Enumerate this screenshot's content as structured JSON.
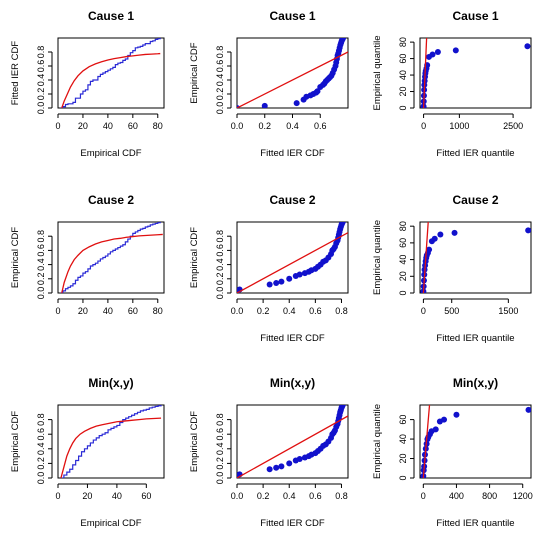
{
  "chart_data": [
    {
      "type": "line",
      "title": "Cause 1",
      "xlabel": "Empirical CDF",
      "ylabel": "Fitted IER CDF",
      "xlim": [
        0,
        85
      ],
      "ylim": [
        0,
        1
      ],
      "xticks": [
        "0",
        "20",
        "40",
        "60",
        "80"
      ],
      "yticks": [
        "0.0",
        "0.2",
        "0.4",
        "0.6",
        "0.8"
      ],
      "series": [
        {
          "color": "#2b2bd6",
          "style": "step",
          "x": [
            2,
            4,
            6,
            8,
            10,
            12,
            14,
            16,
            18,
            20,
            22,
            24,
            26,
            28,
            30,
            32,
            34,
            36,
            38,
            40,
            42,
            44,
            46,
            48,
            50,
            52,
            54,
            56,
            58,
            60,
            62,
            64,
            66,
            68,
            70,
            72,
            74,
            76,
            78,
            80,
            82
          ],
          "y": [
            0.0,
            0.02,
            0.05,
            0.06,
            0.06,
            0.08,
            0.14,
            0.14,
            0.2,
            0.24,
            0.26,
            0.33,
            0.38,
            0.4,
            0.4,
            0.45,
            0.48,
            0.5,
            0.52,
            0.54,
            0.56,
            0.58,
            0.62,
            0.64,
            0.65,
            0.68,
            0.7,
            0.75,
            0.79,
            0.82,
            0.86,
            0.87,
            0.88,
            0.9,
            0.92,
            0.92,
            0.95,
            0.96,
            0.98,
            0.99,
            1.0
          ]
        },
        {
          "color": "#e01010",
          "style": "line",
          "x": [
            3,
            5,
            8,
            10,
            13,
            16,
            20,
            25,
            30,
            35,
            40,
            45,
            50,
            55,
            60,
            65,
            70,
            75,
            80,
            82
          ],
          "y": [
            0.0,
            0.1,
            0.22,
            0.3,
            0.39,
            0.46,
            0.53,
            0.59,
            0.63,
            0.66,
            0.685,
            0.705,
            0.72,
            0.735,
            0.745,
            0.755,
            0.765,
            0.77,
            0.775,
            0.778
          ]
        }
      ]
    },
    {
      "type": "scatter",
      "title": "Cause 1",
      "xlabel": "Fitted IER CDF",
      "ylabel": "Empirical CDF",
      "xlim": [
        0,
        0.8
      ],
      "ylim": [
        0,
        1
      ],
      "xticks": [
        "0.0",
        "0.2",
        "0.4",
        "0.6"
      ],
      "yticks": [
        "0.0",
        "0.2",
        "0.4",
        "0.6",
        "0.8"
      ],
      "series": [
        {
          "color": "#1111cc",
          "style": "points",
          "x": [
            0.0,
            0.2,
            0.43,
            0.48,
            0.5,
            0.53,
            0.55,
            0.57,
            0.58,
            0.6,
            0.62,
            0.63,
            0.64,
            0.65,
            0.66,
            0.67,
            0.68,
            0.69,
            0.7,
            0.71,
            0.715,
            0.72,
            0.725,
            0.73,
            0.735,
            0.74,
            0.745,
            0.75,
            0.755,
            0.76,
            0.765
          ],
          "y": [
            0.0,
            0.03,
            0.07,
            0.12,
            0.16,
            0.18,
            0.2,
            0.22,
            0.24,
            0.3,
            0.33,
            0.35,
            0.38,
            0.4,
            0.42,
            0.44,
            0.46,
            0.5,
            0.55,
            0.6,
            0.65,
            0.7,
            0.75,
            0.78,
            0.82,
            0.86,
            0.9,
            0.93,
            0.96,
            0.98,
            1.0
          ]
        },
        {
          "color": "#e01010",
          "style": "line",
          "x": [
            0,
            0.8
          ],
          "y": [
            0,
            0.8
          ]
        }
      ]
    },
    {
      "type": "scatter",
      "title": "Cause 1",
      "xlabel": "Fitted IER quantile",
      "ylabel": "Empirical quantile",
      "xlim": [
        -100,
        3000
      ],
      "ylim": [
        0,
        85
      ],
      "xticks": [
        "0",
        "1000",
        "2500"
      ],
      "xtickvals": [
        0,
        1000,
        2500
      ],
      "yticks": [
        "0",
        "20",
        "40",
        "60",
        "80"
      ],
      "series": [
        {
          "color": "#1111cc",
          "style": "points",
          "x": [
            0,
            5,
            10,
            15,
            20,
            30,
            40,
            50,
            60,
            80,
            100,
            150,
            250,
            400,
            900,
            2900
          ],
          "y": [
            2,
            8,
            15,
            22,
            28,
            33,
            38,
            42,
            45,
            48,
            52,
            62,
            65,
            68,
            70,
            75
          ]
        },
        {
          "color": "#e01010",
          "style": "line",
          "x": [
            0,
            90
          ],
          "y": [
            0,
            90
          ]
        }
      ]
    },
    {
      "type": "line",
      "title": "Cause 2",
      "xlabel": "",
      "ylabel": "Empirical CDF",
      "xlim": [
        0,
        85
      ],
      "ylim": [
        0,
        1
      ],
      "xticks": [
        "0",
        "20",
        "40",
        "60",
        "80"
      ],
      "yticks": [
        "0.0",
        "0.2",
        "0.4",
        "0.6",
        "0.8"
      ],
      "series": [
        {
          "color": "#2b2bd6",
          "style": "step",
          "x": [
            2,
            4,
            6,
            8,
            10,
            12,
            14,
            16,
            18,
            20,
            22,
            24,
            26,
            28,
            30,
            32,
            34,
            36,
            38,
            40,
            42,
            44,
            46,
            48,
            50,
            52,
            54,
            56,
            58,
            60,
            62,
            64,
            66,
            68,
            70,
            72,
            74,
            76,
            78,
            80,
            82
          ],
          "y": [
            0.0,
            0.03,
            0.06,
            0.08,
            0.1,
            0.13,
            0.18,
            0.22,
            0.24,
            0.28,
            0.3,
            0.34,
            0.38,
            0.4,
            0.42,
            0.45,
            0.48,
            0.5,
            0.52,
            0.55,
            0.58,
            0.6,
            0.62,
            0.64,
            0.66,
            0.68,
            0.72,
            0.76,
            0.8,
            0.84,
            0.86,
            0.88,
            0.9,
            0.91,
            0.93,
            0.94,
            0.96,
            0.97,
            0.98,
            0.99,
            1.0
          ]
        },
        {
          "color": "#e01010",
          "style": "line",
          "x": [
            3,
            5,
            8,
            10,
            13,
            16,
            20,
            25,
            30,
            35,
            40,
            45,
            50,
            55,
            60,
            65,
            70,
            75,
            80,
            84
          ],
          "y": [
            0.0,
            0.15,
            0.3,
            0.38,
            0.47,
            0.53,
            0.6,
            0.65,
            0.69,
            0.72,
            0.74,
            0.76,
            0.77,
            0.785,
            0.795,
            0.805,
            0.81,
            0.815,
            0.82,
            0.825
          ]
        }
      ]
    },
    {
      "type": "scatter",
      "title": "Cause 2",
      "xlabel": "Fitted IER CDF",
      "ylabel": "Empirical CDF",
      "xlim": [
        0,
        0.85
      ],
      "ylim": [
        0,
        1
      ],
      "xticks": [
        "0.0",
        "0.2",
        "0.4",
        "0.6",
        "0.8"
      ],
      "yticks": [
        "0.0",
        "0.2",
        "0.4",
        "0.6",
        "0.8"
      ],
      "series": [
        {
          "color": "#1111cc",
          "style": "points",
          "x": [
            0.0,
            0.02,
            0.25,
            0.3,
            0.34,
            0.4,
            0.45,
            0.48,
            0.52,
            0.55,
            0.57,
            0.6,
            0.62,
            0.64,
            0.66,
            0.68,
            0.7,
            0.72,
            0.73,
            0.74,
            0.75,
            0.76,
            0.77,
            0.775,
            0.78,
            0.785,
            0.79,
            0.795,
            0.8,
            0.805,
            0.81
          ],
          "y": [
            0.0,
            0.05,
            0.12,
            0.14,
            0.16,
            0.2,
            0.24,
            0.26,
            0.28,
            0.3,
            0.32,
            0.34,
            0.37,
            0.4,
            0.44,
            0.46,
            0.5,
            0.55,
            0.6,
            0.62,
            0.65,
            0.7,
            0.74,
            0.78,
            0.82,
            0.86,
            0.9,
            0.93,
            0.96,
            0.98,
            1.0
          ]
        },
        {
          "color": "#e01010",
          "style": "line",
          "x": [
            0,
            0.85
          ],
          "y": [
            0,
            0.85
          ]
        }
      ]
    },
    {
      "type": "scatter",
      "title": "Cause 2",
      "xlabel": "Fitted IER quantile",
      "ylabel": "Empirical quantile",
      "xlim": [
        -60,
        1900
      ],
      "ylim": [
        0,
        85
      ],
      "xticks": [
        "0",
        "500",
        "1500"
      ],
      "xtickvals": [
        0,
        500,
        1500
      ],
      "yticks": [
        "0",
        "20",
        "40",
        "60",
        "80"
      ],
      "series": [
        {
          "color": "#1111cc",
          "style": "points",
          "x": [
            0,
            5,
            10,
            15,
            20,
            30,
            40,
            50,
            60,
            80,
            100,
            150,
            200,
            300,
            550,
            1850
          ],
          "y": [
            2,
            8,
            15,
            22,
            28,
            33,
            38,
            42,
            45,
            48,
            52,
            62,
            65,
            70,
            72,
            75
          ]
        },
        {
          "color": "#e01010",
          "style": "line",
          "x": [
            0,
            90
          ],
          "y": [
            0,
            90
          ]
        }
      ]
    },
    {
      "type": "line",
      "title": "Min(x,y)",
      "xlabel": "Empirical CDF",
      "ylabel": "Empirical CDF",
      "xlim": [
        0,
        72
      ],
      "ylim": [
        0,
        1
      ],
      "xticks": [
        "0",
        "20",
        "40",
        "60"
      ],
      "yticks": [
        "0.0",
        "0.2",
        "0.4",
        "0.6",
        "0.8"
      ],
      "series": [
        {
          "color": "#2b2bd6",
          "style": "step",
          "x": [
            2,
            4,
            6,
            8,
            10,
            12,
            14,
            16,
            18,
            20,
            22,
            24,
            26,
            28,
            30,
            32,
            34,
            36,
            38,
            40,
            42,
            44,
            46,
            48,
            50,
            52,
            54,
            56,
            58,
            60,
            62,
            64,
            66,
            68,
            70
          ],
          "y": [
            0.0,
            0.04,
            0.08,
            0.12,
            0.18,
            0.24,
            0.3,
            0.36,
            0.4,
            0.44,
            0.48,
            0.52,
            0.55,
            0.58,
            0.6,
            0.62,
            0.66,
            0.68,
            0.7,
            0.72,
            0.76,
            0.8,
            0.82,
            0.84,
            0.86,
            0.88,
            0.9,
            0.92,
            0.93,
            0.94,
            0.96,
            0.97,
            0.98,
            0.99,
            1.0
          ]
        },
        {
          "color": "#e01010",
          "style": "line",
          "x": [
            2,
            4,
            6,
            8,
            10,
            12,
            15,
            18,
            22,
            26,
            30,
            35,
            40,
            45,
            50,
            55,
            60,
            65,
            70
          ],
          "y": [
            0.0,
            0.15,
            0.3,
            0.4,
            0.48,
            0.54,
            0.6,
            0.64,
            0.68,
            0.71,
            0.73,
            0.75,
            0.77,
            0.78,
            0.79,
            0.8,
            0.81,
            0.815,
            0.82
          ]
        }
      ]
    },
    {
      "type": "scatter",
      "title": "Min(x,y)",
      "xlabel": "Fitted IER CDF",
      "ylabel": "Empirical CDF",
      "xlim": [
        0,
        0.85
      ],
      "ylim": [
        0,
        1
      ],
      "xticks": [
        "0.0",
        "0.2",
        "0.4",
        "0.6",
        "0.8"
      ],
      "yticks": [
        "0.0",
        "0.2",
        "0.4",
        "0.6",
        "0.8"
      ],
      "series": [
        {
          "color": "#1111cc",
          "style": "points",
          "x": [
            0.0,
            0.02,
            0.25,
            0.3,
            0.34,
            0.4,
            0.45,
            0.48,
            0.52,
            0.55,
            0.57,
            0.6,
            0.62,
            0.64,
            0.66,
            0.68,
            0.7,
            0.72,
            0.73,
            0.74,
            0.75,
            0.76,
            0.77,
            0.775,
            0.78,
            0.785,
            0.79,
            0.795,
            0.8,
            0.805,
            0.81
          ],
          "y": [
            0.0,
            0.05,
            0.12,
            0.14,
            0.16,
            0.2,
            0.24,
            0.26,
            0.28,
            0.3,
            0.32,
            0.34,
            0.37,
            0.4,
            0.44,
            0.46,
            0.5,
            0.55,
            0.6,
            0.62,
            0.65,
            0.7,
            0.74,
            0.78,
            0.82,
            0.86,
            0.9,
            0.93,
            0.96,
            0.98,
            1.0
          ]
        },
        {
          "color": "#e01010",
          "style": "line",
          "x": [
            0,
            0.85
          ],
          "y": [
            0,
            0.85
          ]
        }
      ]
    },
    {
      "type": "scatter",
      "title": "Min(x,y)",
      "xlabel": "Fitted IER quantile",
      "ylabel": "Empirical quantile",
      "xlim": [
        -40,
        1300
      ],
      "ylim": [
        0,
        75
      ],
      "xticks": [
        "0",
        "400",
        "800",
        "1200"
      ],
      "xtickvals": [
        0,
        400,
        800,
        1200
      ],
      "yticks": [
        "0",
        "20",
        "40",
        "60"
      ],
      "series": [
        {
          "color": "#1111cc",
          "style": "points",
          "x": [
            0,
            5,
            10,
            15,
            20,
            30,
            40,
            50,
            60,
            80,
            100,
            150,
            200,
            250,
            400,
            1270
          ],
          "y": [
            2,
            8,
            12,
            18,
            24,
            30,
            35,
            40,
            42,
            45,
            48,
            50,
            58,
            60,
            65,
            70
          ]
        },
        {
          "color": "#e01010",
          "style": "line",
          "x": [
            0,
            75
          ],
          "y": [
            0,
            75
          ]
        }
      ]
    }
  ]
}
